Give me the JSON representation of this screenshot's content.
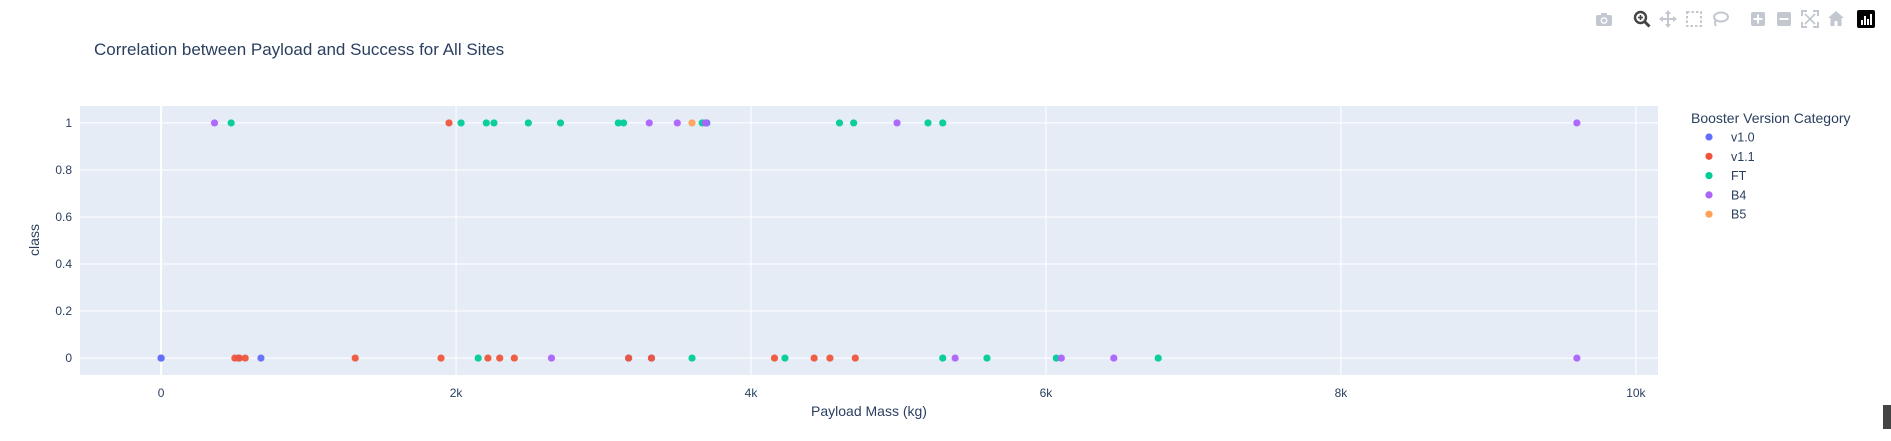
{
  "chart_data": {
    "type": "scatter",
    "title": "Correlation between Payload and Success for All Sites",
    "xlabel": "Payload Mass (kg)",
    "ylabel": "class",
    "xlim": [
      -550,
      10150
    ],
    "ylim": [
      -0.072,
      1.072
    ],
    "xticks": [
      0,
      2000,
      4000,
      6000,
      8000,
      10000
    ],
    "xtick_labels": [
      "0",
      "2k",
      "4k",
      "6k",
      "8k",
      "10k"
    ],
    "yticks": [
      0,
      0.2,
      0.4,
      0.6,
      0.8,
      1
    ],
    "ytick_labels": [
      "0",
      "0.2",
      "0.4",
      "0.6",
      "0.8",
      "1"
    ],
    "grid": true,
    "legend_title": "Booster Version Category",
    "legend_position": "right",
    "series": [
      {
        "name": "v1.0",
        "color": "#636efa",
        "x": [
          0,
          0,
          525,
          677,
          3170,
          3325,
          3700
        ],
        "y": [
          0,
          0,
          0,
          0,
          0,
          0,
          1
        ]
      },
      {
        "name": "v1.1",
        "color": "#EF553B",
        "x": [
          500,
          530,
          570,
          1316,
          1898,
          2216,
          2296,
          2395,
          3170,
          3325,
          4159,
          4428,
          4535,
          4707,
          1952
        ],
        "y": [
          0,
          0,
          0,
          0,
          0,
          0,
          0,
          0,
          0,
          0,
          0,
          0,
          0,
          0,
          1
        ]
      },
      {
        "name": "FT",
        "color": "#00cc96",
        "x": [
          2150,
          3600,
          4230,
          5300,
          5600,
          6070,
          6761,
          475,
          2034,
          2205,
          2257,
          2490,
          2708,
          3100,
          3136,
          3669,
          4600,
          4696,
          5200,
          5300
        ],
        "y": [
          0,
          0,
          0,
          0,
          0,
          0,
          0,
          1,
          1,
          1,
          1,
          1,
          1,
          1,
          1,
          1,
          1,
          1,
          1,
          1
        ]
      },
      {
        "name": "B4",
        "color": "#ab63fa",
        "x": [
          2647,
          5384,
          6104,
          6460,
          9600,
          362,
          3310,
          3500,
          3690,
          4990,
          9600
        ],
        "y": [
          0,
          0,
          0,
          0,
          0,
          1,
          1,
          1,
          1,
          1,
          1
        ]
      },
      {
        "name": "B5",
        "color": "#FFA15A",
        "x": [
          3600
        ],
        "y": [
          1
        ]
      }
    ]
  },
  "modebar": {
    "icons": [
      "camera-icon",
      "zoom-icon",
      "pan-icon",
      "box-select-icon",
      "lasso-select-icon",
      "zoom-in-icon",
      "zoom-out-icon",
      "autoscale-icon",
      "reset-axes-icon",
      "plotly-logo-icon"
    ]
  }
}
